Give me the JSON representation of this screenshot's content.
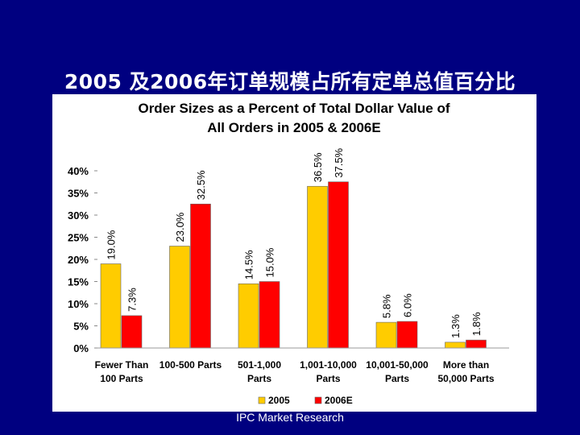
{
  "slide": {
    "title": "2005 及2006年订单规模占所有定单总值百分比",
    "footer": "IPC Market Research"
  },
  "colors": {
    "background": "#000080",
    "series_2005": "#FFCC00",
    "series_2006E": "#FF0000"
  },
  "chart_data": {
    "type": "bar",
    "title_lines": [
      "Order Sizes as a Percent of Total Dollar Value of",
      "All Orders in 2005 & 2006E"
    ],
    "categories": [
      [
        "Fewer Than",
        "100 Parts"
      ],
      [
        "100-500 Parts"
      ],
      [
        "501-1,000",
        "Parts"
      ],
      [
        "1,001-10,000",
        "Parts"
      ],
      [
        "10,001-50,000",
        "Parts"
      ],
      [
        "More than",
        "50,000 Parts"
      ]
    ],
    "series": [
      {
        "name": "2005",
        "values": [
          19.0,
          23.0,
          14.5,
          36.5,
          5.8,
          1.3
        ],
        "labels": [
          "19.0%",
          "23.0%",
          "14.5%",
          "36.5%",
          "5.8%",
          "1.3%"
        ]
      },
      {
        "name": "2006E",
        "values": [
          7.3,
          32.5,
          15.0,
          37.5,
          6.0,
          1.8
        ],
        "labels": [
          "7.3%",
          "32.5%",
          "15.0%",
          "37.5%",
          "6.0%",
          "1.8%"
        ]
      }
    ],
    "yticks": [
      "0%",
      "5%",
      "10%",
      "15%",
      "20%",
      "25%",
      "30%",
      "35%",
      "40%"
    ],
    "ylim": [
      0,
      40
    ],
    "grid": false,
    "legend": "bottom"
  }
}
